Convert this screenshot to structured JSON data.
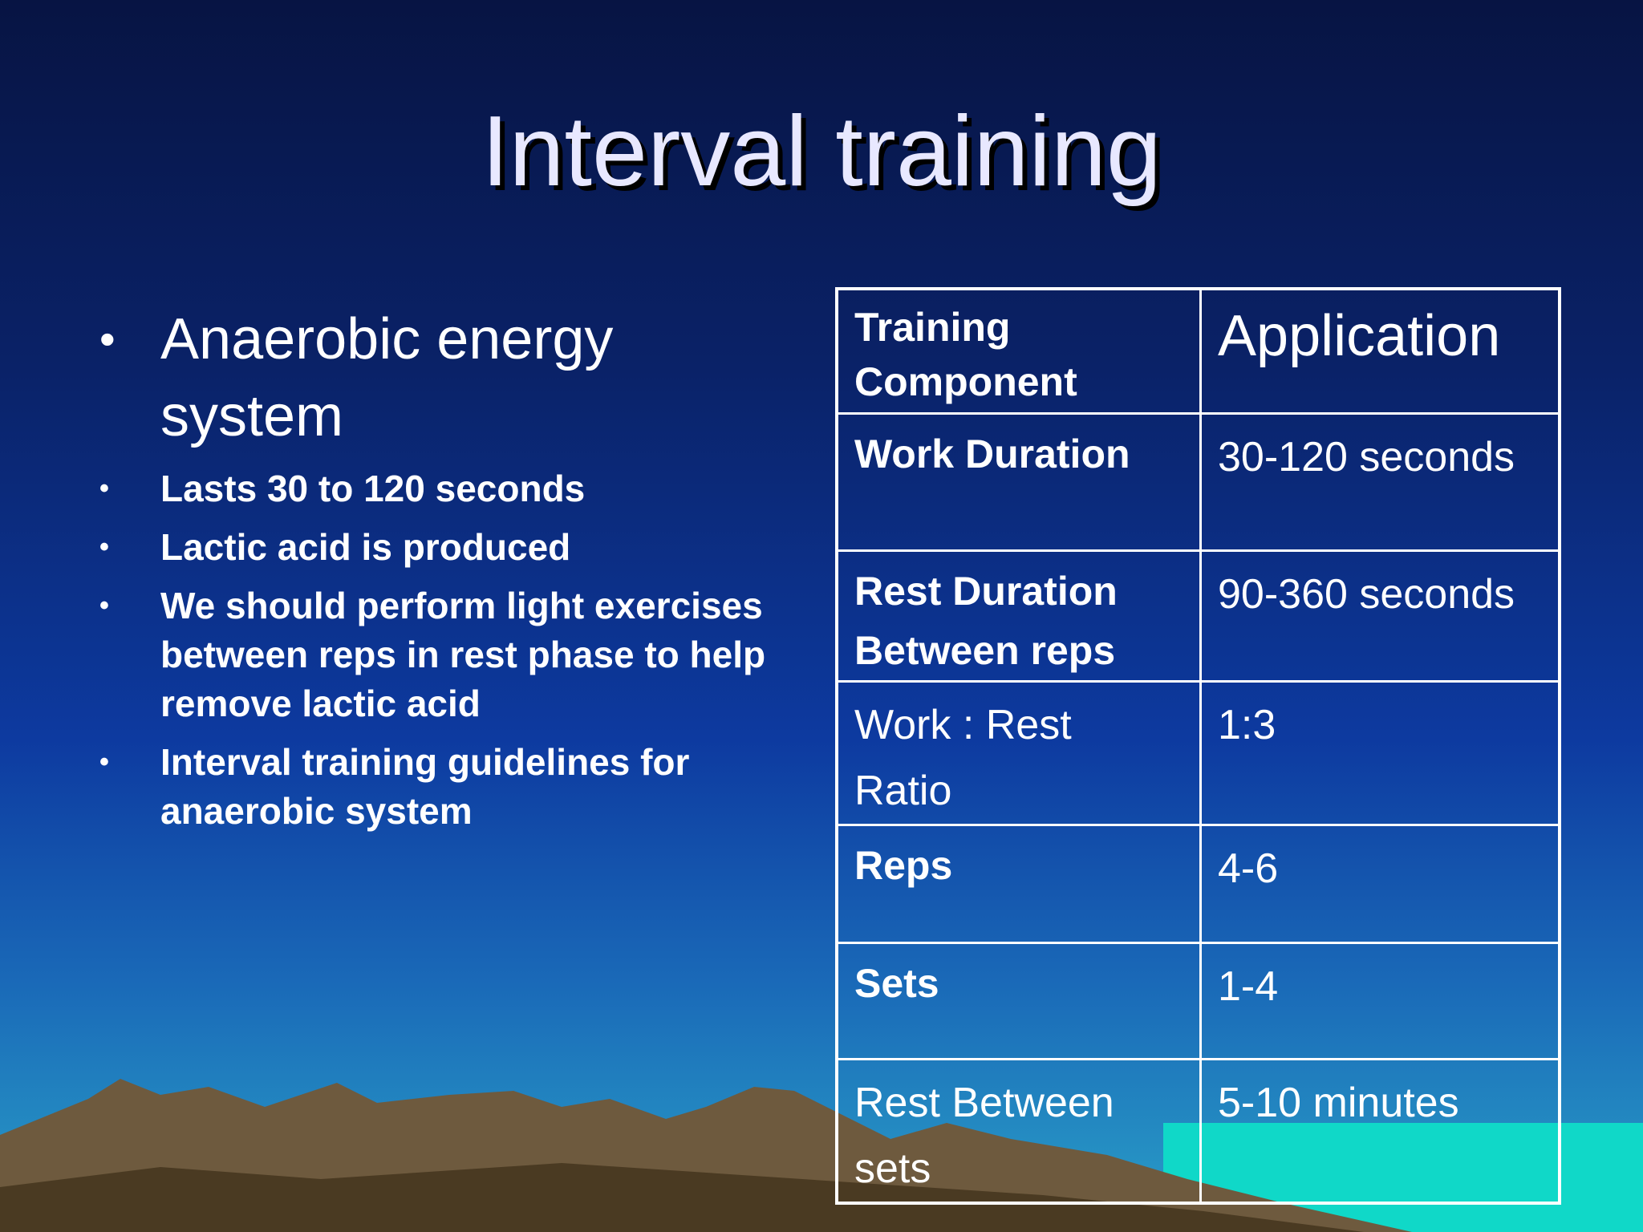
{
  "title": "Interval training",
  "main_bullet": "Anaerobic energy system",
  "sub_bullets": [
    "Lasts 30 to 120 seconds",
    "Lactic acid is produced",
    "We should perform light exercises between reps in rest phase to help remove lactic acid",
    "Interval training guidelines for anaerobic system"
  ],
  "table": {
    "header": [
      "Training Component",
      "Application"
    ],
    "rows": [
      [
        "Work Duration",
        "30-120 seconds"
      ],
      [
        "Rest Duration Between reps",
        "90-360 seconds"
      ],
      [
        "Work : Rest Ratio",
        "1:3"
      ],
      [
        "Reps",
        "4-6"
      ],
      [
        "Sets",
        "1-4"
      ],
      [
        "Rest Between sets",
        "5-10 minutes"
      ]
    ]
  }
}
